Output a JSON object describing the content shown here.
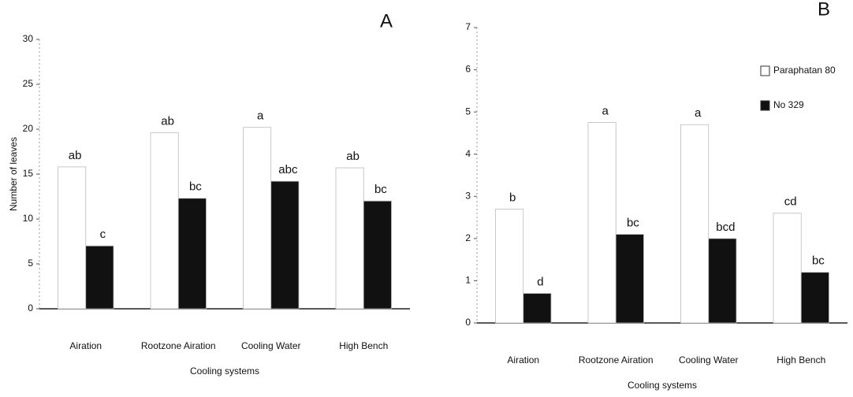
{
  "chart_data": [
    {
      "type": "bar",
      "title": "A",
      "ylabel": "Number of leaves",
      "xlabel": "Cooling systems",
      "categories": [
        "Airation",
        "Rootzone Airation",
        "Cooling Water",
        "High Bench"
      ],
      "series": [
        {
          "color": "#ffffff",
          "values": [
            15.8,
            19.6,
            20.2,
            15.7
          ],
          "value_labels": [
            "ab",
            "ab",
            "a",
            "ab"
          ]
        },
        {
          "color": "#111111",
          "values": [
            7,
            12.3,
            14.2,
            12
          ],
          "value_labels": [
            "c",
            "bc",
            "abc",
            "bc"
          ]
        }
      ],
      "ylim": [
        0,
        30
      ],
      "yticks": [
        0,
        5,
        10,
        15,
        20,
        25,
        30
      ]
    },
    {
      "type": "bar",
      "title": "B",
      "xlabel": "Cooling systems",
      "categories": [
        "Airation",
        "Rootzone Airation",
        "Cooling Water",
        "High Bench"
      ],
      "series": [
        {
          "name": "Paraphatan 80",
          "color": "#ffffff",
          "values": [
            2.7,
            4.75,
            4.7,
            2.6
          ],
          "value_labels": [
            "b",
            "a",
            "a",
            "cd"
          ]
        },
        {
          "name": "No 329",
          "color": "#111111",
          "values": [
            0.7,
            2.1,
            2.0,
            1.2
          ],
          "value_labels": [
            "d",
            "bc",
            "bcd",
            "bc"
          ]
        }
      ],
      "ylim": [
        0,
        7
      ],
      "yticks": [
        0,
        1,
        2,
        3,
        4,
        5,
        6,
        7
      ],
      "legend": "upper right"
    }
  ]
}
